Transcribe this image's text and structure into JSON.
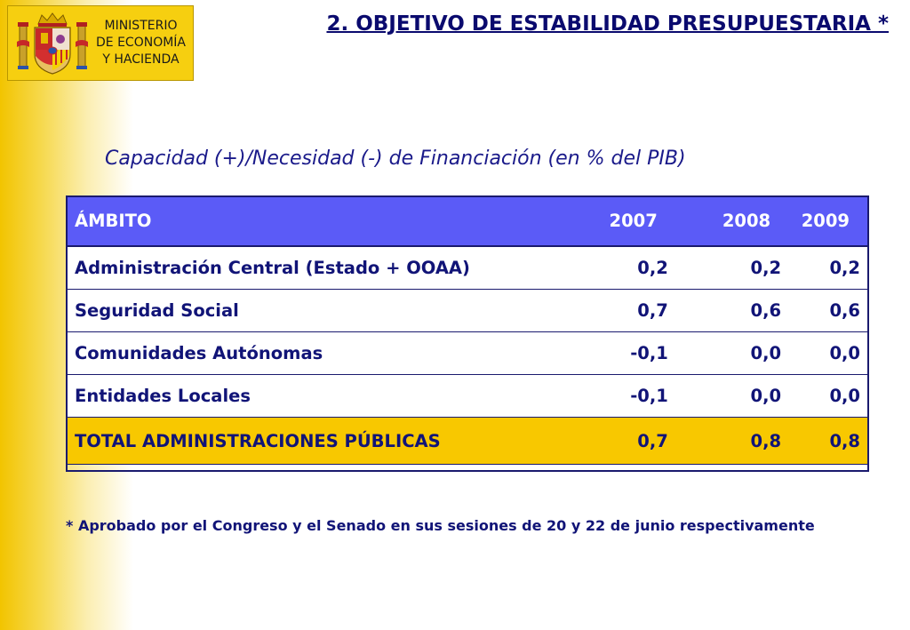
{
  "logo": {
    "lines": [
      "MINISTERIO",
      "DE ECONOMÍA",
      "Y HACIENDA"
    ],
    "crest_icon": "spanish-coat-of-arms"
  },
  "title": "2. OBJETIVO DE ESTABILIDAD PRESUPUESTARIA *",
  "subtitle": "Capacidad (+)/Necesidad (-) de Financiación (en % del PIB)",
  "table": {
    "headers": [
      "ÁMBITO",
      "2007",
      "2008",
      "2009"
    ],
    "rows": [
      [
        "Administración Central (Estado + OOAA)",
        "0,2",
        "0,2",
        "0,2"
      ],
      [
        "Seguridad Social",
        "0,7",
        "0,6",
        "0,6"
      ],
      [
        "Comunidades Autónomas",
        "-0,1",
        "0,0",
        "0,0"
      ],
      [
        "Entidades Locales",
        "-0,1",
        "0,0",
        "0,0"
      ]
    ],
    "total": [
      "TOTAL ADMINISTRACIONES PÚBLICAS",
      "0,7",
      "0,8",
      "0,8"
    ]
  },
  "footnote": "* Aprobado por el Congreso y el Senado en sus sesiones de 20 y 22 de junio respectivamente",
  "colors": {
    "header_bg": "#5b5bf7",
    "total_bg": "#f8c800",
    "text_navy": "#111477",
    "side_yellow": "#f2c400"
  }
}
